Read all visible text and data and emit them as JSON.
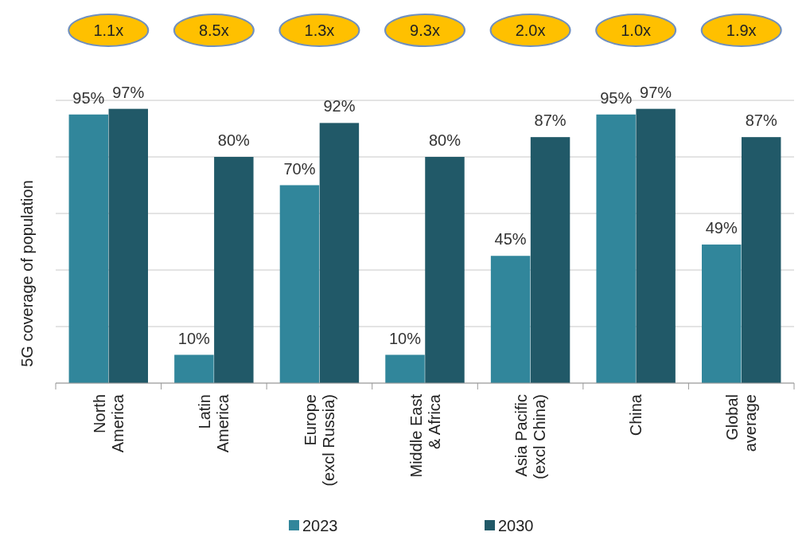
{
  "chart_data": {
    "type": "bar",
    "ylabel": "5G coverage of population",
    "categories": [
      "North\nAmerica",
      "Latin\nAmerica",
      "Europe\n(excl Russia)",
      "Middle East\n& Africa",
      "Asia Pacific\n(excl China)",
      "China",
      "Global\naverage"
    ],
    "series": [
      {
        "name": "2023",
        "color": "#31869b",
        "values": [
          95,
          10,
          70,
          10,
          45,
          95,
          49
        ],
        "value_labels": [
          "95%",
          "10%",
          "70%",
          "10%",
          "45%",
          "95%",
          "49%"
        ]
      },
      {
        "name": "2030",
        "color": "#215968",
        "values": [
          97,
          80,
          92,
          80,
          87,
          97,
          87
        ],
        "value_labels": [
          "97%",
          "80%",
          "92%",
          "80%",
          "87%",
          "97%",
          "87%"
        ]
      }
    ],
    "ylim": [
      0,
      100
    ],
    "yticks": [
      {
        "value": 0,
        "label": null
      },
      {
        "value": 20,
        "label": null
      },
      {
        "value": 40,
        "label": null
      },
      {
        "value": 60,
        "label": null
      },
      {
        "value": 80,
        "label": null
      },
      {
        "value": 100,
        "label": null
      }
    ],
    "grid": "y",
    "tick_labels": "x",
    "legend": "bottom",
    "annotations": [
      "1.1x",
      "8.5x",
      "1.3x",
      "9.3x",
      "2.0x",
      "1.0x",
      "1.9x"
    ]
  }
}
